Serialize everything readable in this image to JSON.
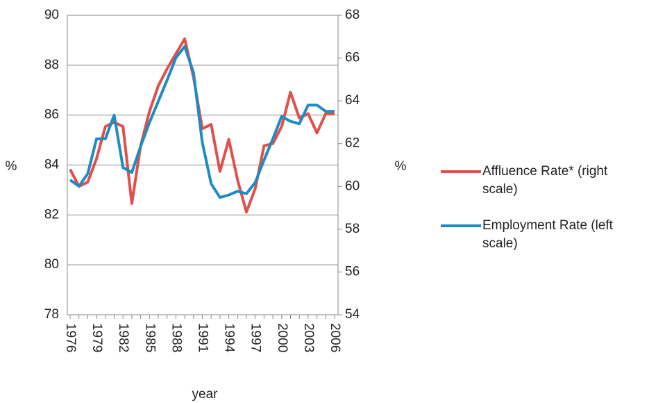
{
  "chart_data": {
    "type": "line",
    "categories": [
      1976,
      null,
      null,
      1979,
      null,
      null,
      1982,
      null,
      null,
      1985,
      null,
      null,
      1988,
      null,
      null,
      1991,
      null,
      null,
      1994,
      null,
      null,
      1997,
      null,
      null,
      2000,
      null,
      null,
      2003,
      null,
      null,
      2006
    ],
    "series": [
      {
        "name": "Affluence Rate* (right scale)",
        "color": "#e0504a",
        "axis": "y2",
        "values": [
          60.8,
          60.0,
          60.2,
          61.3,
          62.8,
          63.0,
          62.8,
          59.2,
          61.9,
          63.5,
          64.7,
          65.5,
          66.2,
          66.9,
          65.1,
          62.7,
          62.9,
          60.7,
          62.2,
          60.3,
          58.8,
          59.9,
          61.9,
          62.0,
          62.8,
          64.4,
          63.2,
          63.4,
          62.5,
          63.4,
          63.4
        ]
      },
      {
        "name": "Employment Rate (left scale)",
        "color": "#1e8bc3",
        "values": [
          83.4,
          83.15,
          83.65,
          85.05,
          85.05,
          86.0,
          83.9,
          83.7,
          84.75,
          85.7,
          86.55,
          87.4,
          88.3,
          88.75,
          87.7,
          84.9,
          83.25,
          82.7,
          82.8,
          82.95,
          82.85,
          83.3,
          84.2,
          85.05,
          85.95,
          85.75,
          85.65,
          86.4,
          86.4,
          86.15,
          86.15
        ]
      }
    ],
    "ylabel": "%",
    "y2label": "%",
    "xlabel": "year",
    "ylim": [
      78,
      90
    ],
    "yticks": [
      78,
      80,
      82,
      84,
      86,
      88,
      90
    ],
    "y2lim": [
      54,
      68
    ],
    "y2ticks": [
      54,
      56,
      58,
      60,
      62,
      64,
      66,
      68
    ],
    "grid": true
  }
}
